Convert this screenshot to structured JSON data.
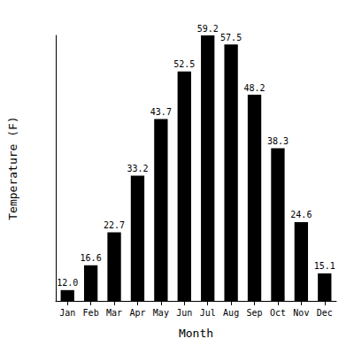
{
  "chart_data": {
    "type": "bar",
    "x_label": "Month",
    "y_label": "Temperature (F)",
    "categories": [
      "Jan",
      "Feb",
      "Mar",
      "Apr",
      "May",
      "Jun",
      "Jul",
      "Aug",
      "Sep",
      "Oct",
      "Nov",
      "Dec"
    ],
    "values": [
      12.0,
      16.6,
      22.7,
      33.2,
      43.7,
      52.5,
      59.2,
      57.5,
      48.2,
      38.3,
      24.6,
      15.1
    ],
    "value_labels": [
      "12.0",
      "16.6",
      "22.7",
      "33.2",
      "43.7",
      "52.5",
      "59.2",
      "57.5",
      "48.2",
      "38.3",
      "24.6",
      "15.1"
    ],
    "color": "#000000",
    "ylim": [
      10,
      59.2
    ],
    "grid": false,
    "data_labels": true,
    "tick_labels": "x"
  }
}
